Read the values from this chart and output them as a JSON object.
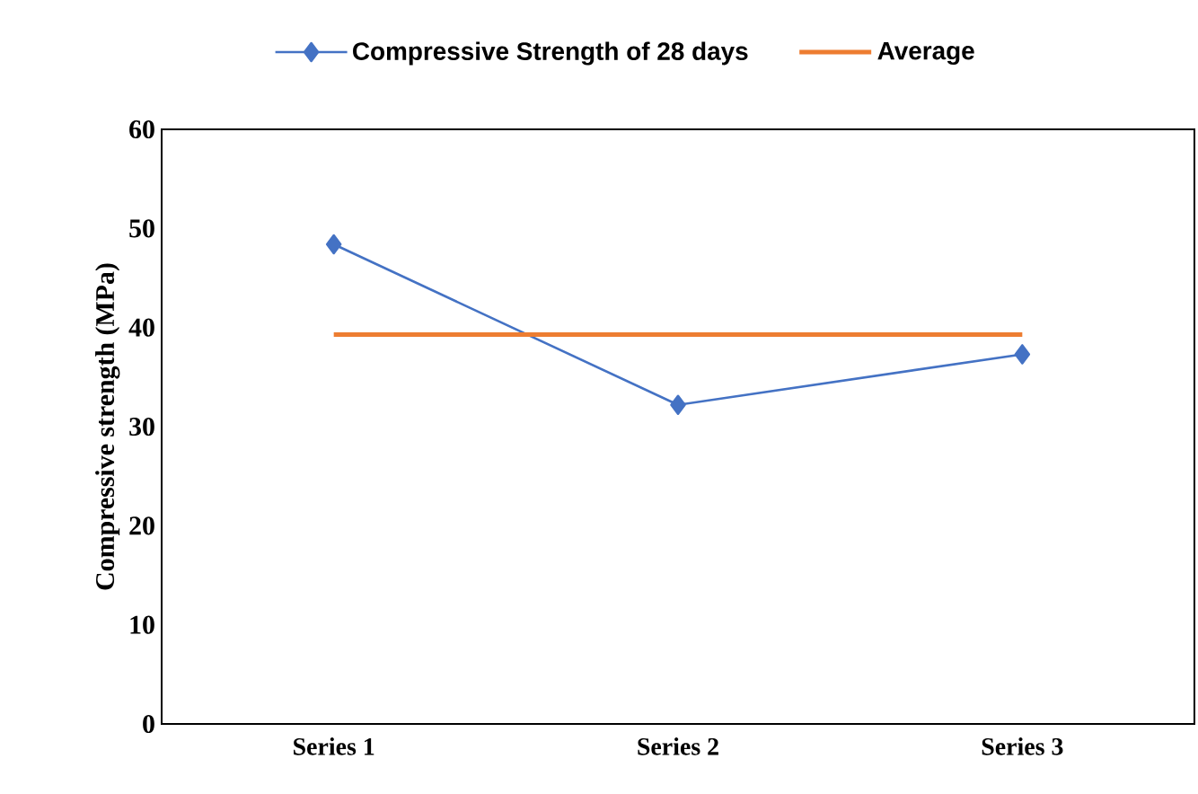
{
  "chart_data": {
    "type": "line",
    "categories": [
      "Series 1",
      "Series 2",
      "Series 3"
    ],
    "ylabel": "Compressive strength (MPa)",
    "series": [
      {
        "name": "Compressive Strength of 28 days",
        "color": "#4472c4",
        "values": [
          48.4,
          32.2,
          37.3
        ],
        "marker": "diamond"
      },
      {
        "name": "Average",
        "color": "#ed7d31",
        "values": [
          39.3,
          39.3,
          39.3
        ],
        "marker": "none"
      }
    ],
    "ylim": [
      0,
      60
    ],
    "yticks": [
      0,
      10,
      20,
      30,
      40,
      50,
      60
    ],
    "grid": false,
    "legend": "top",
    "line_style": "solid"
  }
}
